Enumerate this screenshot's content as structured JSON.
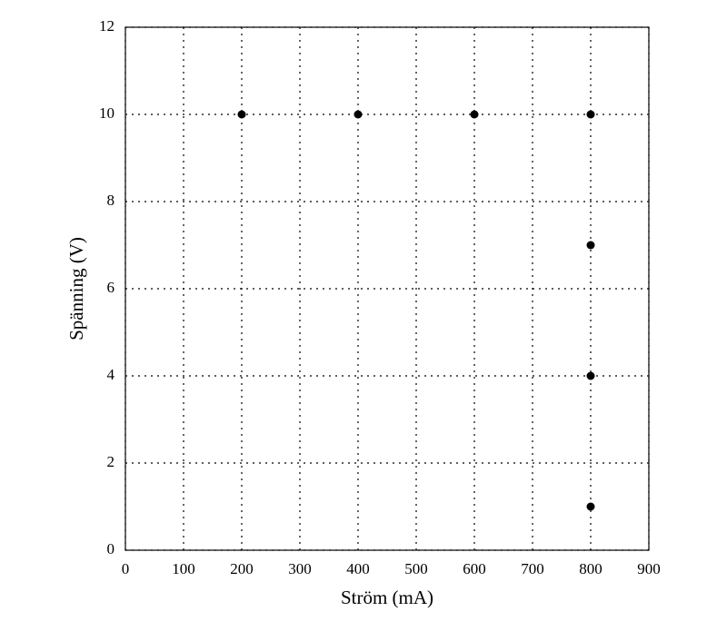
{
  "chart_data": {
    "type": "scatter",
    "xlabel": "Ström (mA)",
    "ylabel": "Spänning (V)",
    "x": [
      200,
      400,
      600,
      800,
      800,
      800,
      800
    ],
    "values": [
      10,
      10,
      10,
      10,
      7,
      4,
      1
    ],
    "color": "#000000",
    "xlim": [
      0,
      900
    ],
    "xticks": [
      0,
      100,
      200,
      300,
      400,
      500,
      600,
      700,
      800,
      900
    ],
    "ylim": [
      0,
      12
    ],
    "yticks": [
      0,
      2,
      4,
      6,
      8,
      10,
      12
    ],
    "grid": true
  }
}
